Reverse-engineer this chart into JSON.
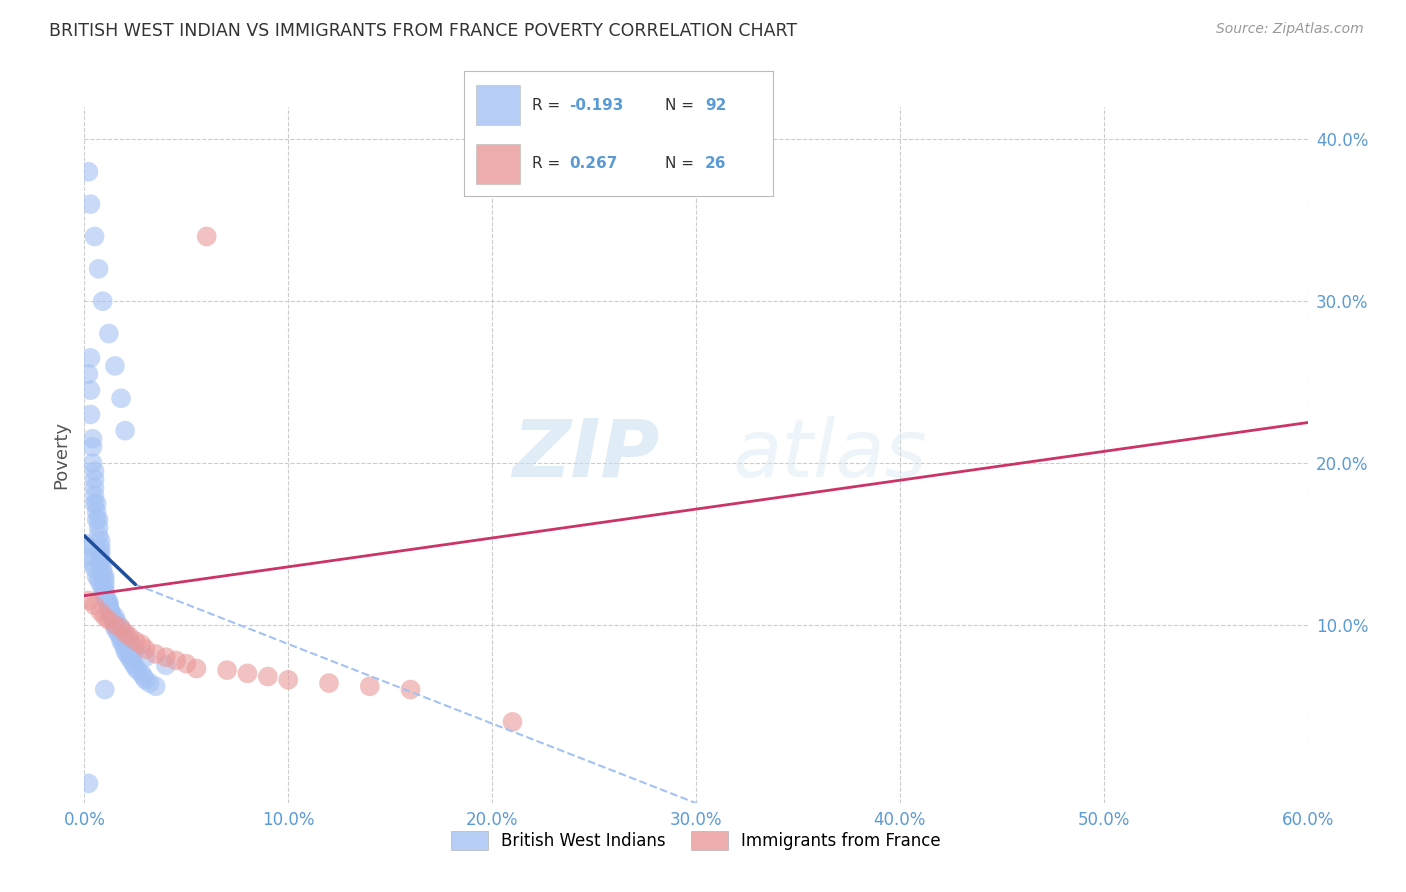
{
  "title": "BRITISH WEST INDIAN VS IMMIGRANTS FROM FRANCE POVERTY CORRELATION CHART",
  "source": "Source: ZipAtlas.com",
  "ylabel": "Poverty",
  "watermark_zip": "ZIP",
  "watermark_atlas": "atlas",
  "xlim": [
    0.0,
    0.6
  ],
  "ylim": [
    -0.01,
    0.42
  ],
  "xticks": [
    0.0,
    0.1,
    0.2,
    0.3,
    0.4,
    0.5,
    0.6
  ],
  "yticks": [
    0.1,
    0.2,
    0.3,
    0.4
  ],
  "xtick_labels": [
    "0.0%",
    "10.0%",
    "20.0%",
    "30.0%",
    "40.0%",
    "50.0%",
    "60.0%"
  ],
  "ytick_labels": [
    "10.0%",
    "20.0%",
    "30.0%",
    "40.0%"
  ],
  "legend1_label": "British West Indians",
  "legend2_label": "Immigrants from France",
  "R1": -0.193,
  "N1": 92,
  "R2": 0.267,
  "N2": 26,
  "color1": "#a4c2f4",
  "color2": "#ea9999",
  "color1_dark": "#1f4e9c",
  "color2_dark": "#cc3366",
  "grid_color": "#cccccc",
  "background_color": "#ffffff",
  "blue_solid_line": [
    [
      0.0,
      0.155
    ],
    [
      0.025,
      0.125
    ]
  ],
  "blue_dash_line": [
    [
      0.025,
      0.125
    ],
    [
      0.32,
      -0.02
    ]
  ],
  "pink_line": [
    [
      0.0,
      0.118
    ],
    [
      0.6,
      0.225
    ]
  ],
  "blue_scatter_x": [
    0.002,
    0.003,
    0.003,
    0.003,
    0.004,
    0.004,
    0.004,
    0.005,
    0.005,
    0.005,
    0.005,
    0.005,
    0.006,
    0.006,
    0.006,
    0.007,
    0.007,
    0.007,
    0.008,
    0.008,
    0.008,
    0.008,
    0.008,
    0.008,
    0.009,
    0.009,
    0.01,
    0.01,
    0.01,
    0.01,
    0.01,
    0.01,
    0.011,
    0.012,
    0.012,
    0.012,
    0.013,
    0.013,
    0.014,
    0.015,
    0.015,
    0.015,
    0.016,
    0.017,
    0.018,
    0.018,
    0.019,
    0.02,
    0.02,
    0.021,
    0.022,
    0.023,
    0.024,
    0.025,
    0.026,
    0.028,
    0.029,
    0.03,
    0.032,
    0.035,
    0.001,
    0.002,
    0.003,
    0.004,
    0.005,
    0.006,
    0.007,
    0.008,
    0.009,
    0.01,
    0.011,
    0.012,
    0.013,
    0.015,
    0.016,
    0.018,
    0.02,
    0.022,
    0.025,
    0.03,
    0.04,
    0.002,
    0.003,
    0.005,
    0.007,
    0.009,
    0.012,
    0.015,
    0.018,
    0.02,
    0.002,
    0.01
  ],
  "blue_scatter_y": [
    0.255,
    0.265,
    0.245,
    0.23,
    0.215,
    0.2,
    0.21,
    0.195,
    0.19,
    0.185,
    0.18,
    0.175,
    0.175,
    0.17,
    0.165,
    0.165,
    0.16,
    0.155,
    0.152,
    0.148,
    0.145,
    0.142,
    0.14,
    0.138,
    0.135,
    0.132,
    0.13,
    0.128,
    0.125,
    0.122,
    0.12,
    0.118,
    0.116,
    0.114,
    0.112,
    0.11,
    0.108,
    0.106,
    0.104,
    0.102,
    0.1,
    0.098,
    0.096,
    0.094,
    0.092,
    0.09,
    0.088,
    0.086,
    0.084,
    0.082,
    0.08,
    0.078,
    0.076,
    0.074,
    0.072,
    0.07,
    0.068,
    0.066,
    0.064,
    0.062,
    0.15,
    0.148,
    0.142,
    0.138,
    0.135,
    0.13,
    0.128,
    0.125,
    0.122,
    0.118,
    0.115,
    0.112,
    0.108,
    0.105,
    0.102,
    0.098,
    0.094,
    0.09,
    0.085,
    0.08,
    0.075,
    0.38,
    0.36,
    0.34,
    0.32,
    0.3,
    0.28,
    0.26,
    0.24,
    0.22,
    0.002,
    0.06
  ],
  "pink_scatter_x": [
    0.002,
    0.005,
    0.008,
    0.01,
    0.012,
    0.015,
    0.018,
    0.02,
    0.022,
    0.025,
    0.028,
    0.03,
    0.035,
    0.04,
    0.045,
    0.05,
    0.055,
    0.06,
    0.07,
    0.08,
    0.09,
    0.1,
    0.12,
    0.14,
    0.16,
    0.21
  ],
  "pink_scatter_y": [
    0.115,
    0.112,
    0.108,
    0.105,
    0.103,
    0.1,
    0.098,
    0.095,
    0.093,
    0.09,
    0.088,
    0.085,
    0.082,
    0.08,
    0.078,
    0.076,
    0.073,
    0.34,
    0.072,
    0.07,
    0.068,
    0.066,
    0.064,
    0.062,
    0.06,
    0.04
  ]
}
